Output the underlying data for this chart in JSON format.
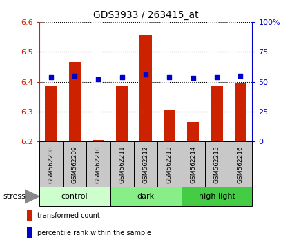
{
  "title": "GDS3933 / 263415_at",
  "samples": [
    "GSM562208",
    "GSM562209",
    "GSM562210",
    "GSM562211",
    "GSM562212",
    "GSM562213",
    "GSM562214",
    "GSM562215",
    "GSM562216"
  ],
  "red_values": [
    6.385,
    6.465,
    6.205,
    6.385,
    6.555,
    6.305,
    6.265,
    6.385,
    6.395
  ],
  "blue_values": [
    54,
    55,
    52,
    54,
    56,
    54,
    53,
    54,
    55
  ],
  "groups": [
    {
      "label": "control",
      "start": 0,
      "end": 3,
      "color": "#ccffcc"
    },
    {
      "label": "dark",
      "start": 3,
      "end": 6,
      "color": "#88ee88"
    },
    {
      "label": "high light",
      "start": 6,
      "end": 9,
      "color": "#44cc44"
    }
  ],
  "ylim_left": [
    6.2,
    6.6
  ],
  "ylim_right": [
    0,
    100
  ],
  "yticks_left": [
    6.2,
    6.3,
    6.4,
    6.5,
    6.6
  ],
  "yticks_right": [
    0,
    25,
    50,
    75,
    100
  ],
  "ytick_labels_right": [
    "0",
    "25",
    "50",
    "75",
    "100%"
  ],
  "bar_color": "#cc2200",
  "dot_color": "#0000cc",
  "bar_width": 0.5,
  "bar_bottom": 6.2,
  "stress_label": "stress",
  "group_row_color": "#c8c8c8",
  "legend_items": [
    {
      "color": "#cc2200",
      "label": "transformed count"
    },
    {
      "color": "#0000cc",
      "label": "percentile rank within the sample"
    }
  ],
  "fig_width": 4.2,
  "fig_height": 3.54,
  "dpi": 100
}
